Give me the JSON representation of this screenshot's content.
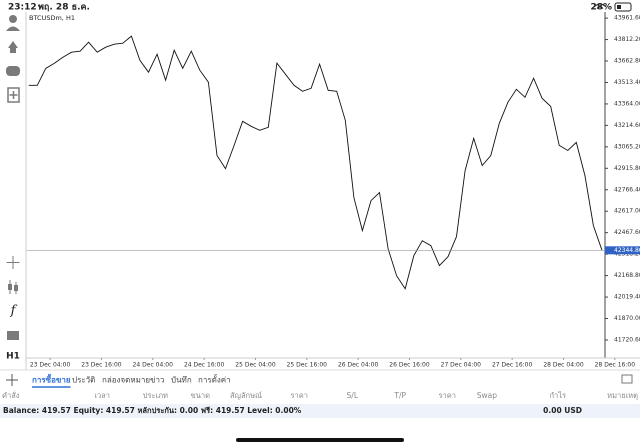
{
  "status_bar": {
    "time": "23:12",
    "date": "พฤ. 28 ธ.ค.",
    "battery": "28%"
  },
  "toolbar": {
    "timeframe": "H1"
  },
  "chart_data": {
    "type": "line",
    "title": "BTCUSDm, H1",
    "color": "#111111",
    "x": [
      -1,
      1,
      3,
      5,
      7,
      9,
      11,
      13,
      15,
      17,
      19,
      21,
      23,
      25,
      27,
      29,
      31,
      33,
      35,
      37,
      39,
      41,
      43,
      45,
      47,
      49,
      51,
      53,
      55,
      57,
      59,
      61,
      63,
      65,
      67,
      69,
      71,
      73,
      75,
      77,
      79,
      81,
      83,
      85,
      87,
      89,
      91,
      93,
      95,
      97,
      99,
      101,
      103,
      105,
      107,
      109,
      111,
      113,
      115,
      117,
      119,
      121,
      123,
      125,
      127,
      129,
      131,
      133
    ],
    "values": [
      43494,
      43494,
      43612,
      43647,
      43689,
      43724,
      43731,
      43794,
      43724,
      43759,
      43780,
      43787,
      43836,
      43668,
      43585,
      43710,
      43529,
      43738,
      43612,
      43731,
      43599,
      43515,
      43005,
      42914,
      43075,
      43243,
      43208,
      43180,
      43201,
      43648,
      43571,
      43494,
      43452,
      43473,
      43641,
      43459,
      43452,
      43250,
      42712,
      42482,
      42691,
      42747,
      42356,
      42168,
      42077,
      42307,
      42412,
      42377,
      42238,
      42300,
      42440,
      42900,
      43124,
      42935,
      43005,
      43229,
      43375,
      43466,
      43410,
      43543,
      43403,
      43347,
      43075,
      43040,
      43096,
      42866,
      42517,
      42345
    ],
    "xlim": [
      -1.4,
      133.7
    ],
    "xticks": [
      {
        "value": 4,
        "label": "23 Dec 04:00"
      },
      {
        "value": 16,
        "label": "23 Dec 16:00"
      },
      {
        "value": 28,
        "label": "24 Dec 04:00"
      },
      {
        "value": 40,
        "label": "24 Dec 16:00"
      },
      {
        "value": 52,
        "label": "25 Dec 04:00"
      },
      {
        "value": 64,
        "label": "25 Dec 16:00"
      },
      {
        "value": 76,
        "label": "26 Dec 04:00"
      },
      {
        "value": 88,
        "label": "26 Dec 16:00"
      },
      {
        "value": 100,
        "label": "27 Dec 04:00"
      },
      {
        "value": 112,
        "label": "27 Dec 16:00"
      },
      {
        "value": 124,
        "label": "28 Dec 04:00"
      },
      {
        "value": 136,
        "label": "28 Dec 16:00"
      }
    ],
    "ylim": [
      41595,
      44004
    ],
    "yticks": [
      {
        "value": 43961.6,
        "label": "43961.60"
      },
      {
        "value": 43812.2,
        "label": "43812.20"
      },
      {
        "value": 43662.8,
        "label": "43662.80"
      },
      {
        "value": 43513.4,
        "label": "43513.40"
      },
      {
        "value": 43364,
        "label": "43364.00"
      },
      {
        "value": 43214.6,
        "label": "43214.60"
      },
      {
        "value": 43065.2,
        "label": "43065.20"
      },
      {
        "value": 42915.8,
        "label": "42915.80"
      },
      {
        "value": 42766.4,
        "label": "42766.40"
      },
      {
        "value": 42617,
        "label": "42617.00"
      },
      {
        "value": 42467.6,
        "label": "42467.60"
      },
      {
        "value": 42318.2,
        "label": "42318.20"
      },
      {
        "value": 42168.8,
        "label": "42168.80"
      },
      {
        "value": 42019.4,
        "label": "42019.40"
      },
      {
        "value": 41870,
        "label": "41870.00"
      },
      {
        "value": 41720.6,
        "label": "41720.60"
      }
    ],
    "current_price": 42344.86
  },
  "tabs": [
    "การซื้อขาย",
    "ประวัติ",
    "กล่องจดหมาย",
    "ข่าว",
    "บันทึก",
    "การตั้งค่า"
  ],
  "active_tab": 0,
  "table": {
    "headers": [
      "คำสั่ง",
      "เวลา",
      "ประเภท",
      "ขนาด",
      "สัญลักษณ์",
      "ราคา",
      "S/L",
      "T/P",
      "ราคา",
      "Swap",
      "กำไร",
      "หมายเหตุ"
    ]
  },
  "balance": {
    "summary": "Balance: 419.57 Equity: 419.57 หลักประกัน: 0.00 ฟรี: 419.57 Level: 0.00%",
    "profit": "0.00 USD"
  }
}
